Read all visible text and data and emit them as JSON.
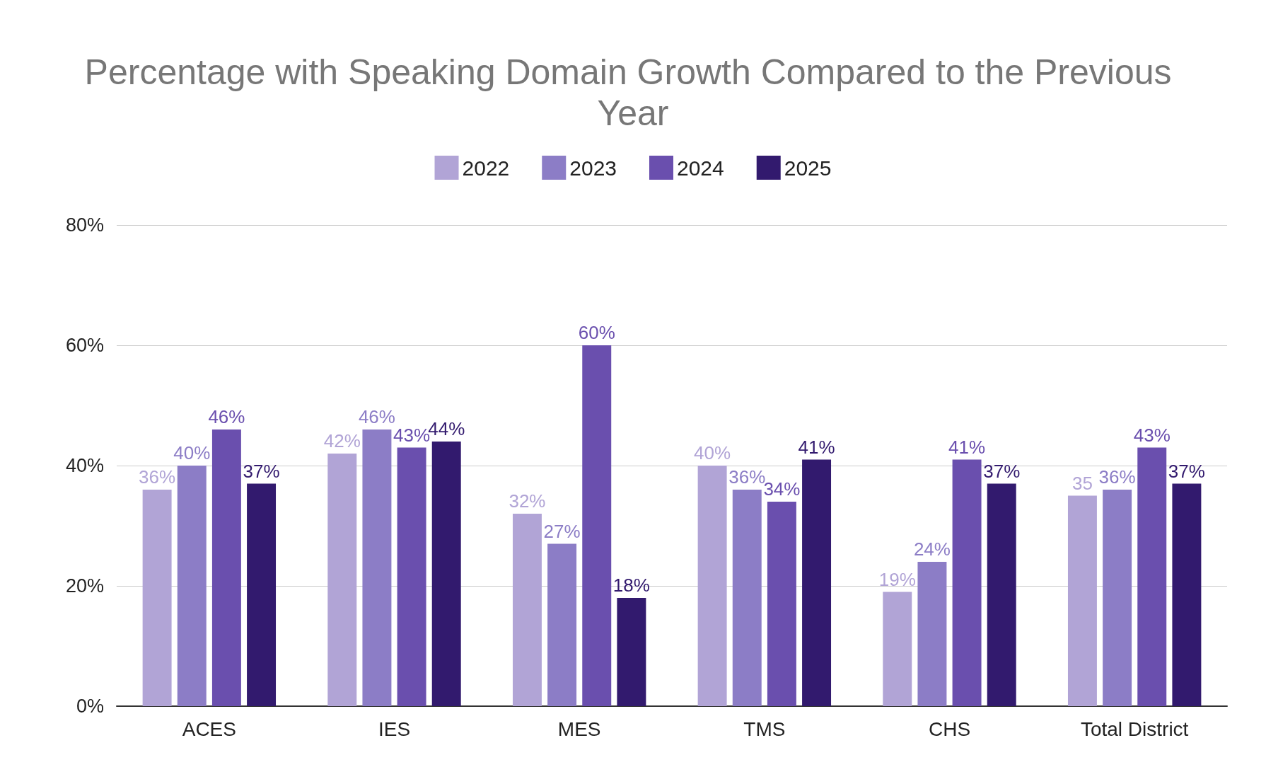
{
  "chart_data": {
    "type": "bar",
    "title": "Percentage with Speaking Domain Growth Compared to the Previous Year",
    "categories": [
      "ACES",
      "IES",
      "MES",
      "TMS",
      "CHS",
      "Total District"
    ],
    "series": [
      {
        "name": "2022",
        "color": "#b1a4d6",
        "values": [
          36,
          42,
          32,
          40,
          19,
          35
        ],
        "value_labels": [
          "36%",
          "42%",
          "32%",
          "40%",
          "19%",
          "35"
        ]
      },
      {
        "name": "2023",
        "color": "#8c7dc6",
        "values": [
          40,
          46,
          27,
          36,
          24,
          36
        ],
        "value_labels": [
          "40%",
          "46%",
          "27%",
          "36%",
          "24%",
          "36%"
        ]
      },
      {
        "name": "2024",
        "color": "#6a4fae",
        "values": [
          46,
          43,
          60,
          34,
          41,
          43
        ],
        "value_labels": [
          "46%",
          "43%",
          "60%",
          "34%",
          "41%",
          "43%"
        ]
      },
      {
        "name": "2025",
        "color": "#321a6e",
        "values": [
          37,
          44,
          18,
          41,
          37,
          37
        ],
        "value_labels": [
          "37%",
          "44%",
          "18%",
          "41%",
          "37%",
          "37%"
        ]
      }
    ],
    "ylim": [
      0,
      80
    ],
    "yticks": [
      {
        "value": 0,
        "label": "0%"
      },
      {
        "value": 20,
        "label": "20%"
      },
      {
        "value": 40,
        "label": "40%"
      },
      {
        "value": 60,
        "label": "60%"
      },
      {
        "value": 80,
        "label": "80%"
      }
    ],
    "grid": "y",
    "legend": "top"
  }
}
